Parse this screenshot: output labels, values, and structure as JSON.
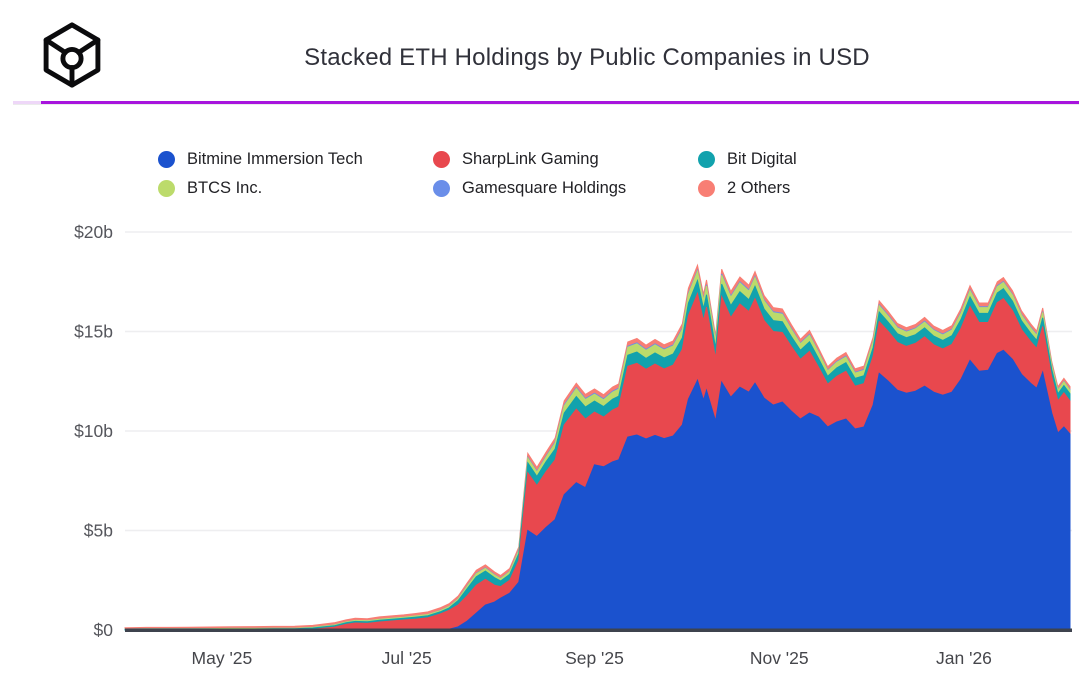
{
  "header": {
    "logo_icon": "cube-wireframe-logo"
  },
  "accent": {
    "divider_color": "#a714dd",
    "divider_light_color": "#eed7f8",
    "axis_line_color": "#3e434e",
    "gridline_color": "#eeeef0"
  },
  "chart_data": {
    "type": "area",
    "stacked": true,
    "title": "Stacked ETH Holdings by Public Companies in USD",
    "unit": "USD billions",
    "grid": true,
    "legend_position": "top",
    "y_max": 20,
    "x_domain": [
      "2025-03-30",
      "2026-02-05"
    ],
    "y_ticks": [
      {
        "value": 0,
        "label": "$0"
      },
      {
        "value": 5,
        "label": "$5b"
      },
      {
        "value": 10,
        "label": "$10b"
      },
      {
        "value": 15,
        "label": "$15b"
      },
      {
        "value": 20,
        "label": "$20b"
      }
    ],
    "x_ticks": [
      {
        "date": "2025-05-01",
        "label": "May '25"
      },
      {
        "date": "2025-07-01",
        "label": "Jul '25"
      },
      {
        "date": "2025-09-01",
        "label": "Sep '25"
      },
      {
        "date": "2025-11-01",
        "label": "Nov '25"
      },
      {
        "date": "2026-01-01",
        "label": "Jan '26"
      }
    ],
    "x": [
      "2025-03-30",
      "2025-04-06",
      "2025-04-13",
      "2025-04-20",
      "2025-04-27",
      "2025-05-04",
      "2025-05-11",
      "2025-05-18",
      "2025-05-25",
      "2025-05-31",
      "2025-06-03",
      "2025-06-07",
      "2025-06-11",
      "2025-06-14",
      "2025-06-18",
      "2025-06-22",
      "2025-06-26",
      "2025-06-30",
      "2025-07-04",
      "2025-07-08",
      "2025-07-12",
      "2025-07-15",
      "2025-07-18",
      "2025-07-21",
      "2025-07-24",
      "2025-07-27",
      "2025-07-30",
      "2025-08-01",
      "2025-08-04",
      "2025-08-07",
      "2025-08-10",
      "2025-08-13",
      "2025-08-16",
      "2025-08-19",
      "2025-08-22",
      "2025-08-26",
      "2025-08-29",
      "2025-09-01",
      "2025-09-04",
      "2025-09-07",
      "2025-09-09",
      "2025-09-12",
      "2025-09-15",
      "2025-09-18",
      "2025-09-21",
      "2025-09-24",
      "2025-09-27",
      "2025-09-30",
      "2025-10-02",
      "2025-10-05",
      "2025-10-07",
      "2025-10-08",
      "2025-10-11",
      "2025-10-13",
      "2025-10-16",
      "2025-10-19",
      "2025-10-22",
      "2025-10-24",
      "2025-10-27",
      "2025-10-30",
      "2025-11-02",
      "2025-11-05",
      "2025-11-08",
      "2025-11-11",
      "2025-11-14",
      "2025-11-17",
      "2025-11-20",
      "2025-11-23",
      "2025-11-26",
      "2025-11-29",
      "2025-12-02",
      "2025-12-04",
      "2025-12-07",
      "2025-12-10",
      "2025-12-13",
      "2025-12-16",
      "2025-12-19",
      "2025-12-22",
      "2025-12-25",
      "2025-12-28",
      "2025-12-31",
      "2026-01-03",
      "2026-01-06",
      "2026-01-09",
      "2026-01-12",
      "2026-01-14",
      "2026-01-17",
      "2026-01-20",
      "2026-01-23",
      "2026-01-25",
      "2026-01-27",
      "2026-01-30",
      "2026-02-01",
      "2026-02-03",
      "2026-02-05"
    ],
    "series": [
      {
        "name": "Bitmine Immersion Tech",
        "color": "#1b52ce",
        "values": [
          0,
          0,
          0,
          0,
          0,
          0,
          0,
          0,
          0,
          0,
          0,
          0,
          0,
          0,
          0,
          0,
          0,
          0,
          0,
          0,
          0,
          0.04,
          0.16,
          0.45,
          0.85,
          1.25,
          1.4,
          1.6,
          1.85,
          2.4,
          5.0,
          4.7,
          5.15,
          5.55,
          6.8,
          7.4,
          7.15,
          8.3,
          8.2,
          8.45,
          8.55,
          9.7,
          9.8,
          9.6,
          9.78,
          9.62,
          9.75,
          10.3,
          11.6,
          12.55,
          11.55,
          12.05,
          10.5,
          12.45,
          11.7,
          12.2,
          11.95,
          12.4,
          11.65,
          11.3,
          11.45,
          11.0,
          10.6,
          10.9,
          10.7,
          10.2,
          10.45,
          10.6,
          10.1,
          10.2,
          11.3,
          12.9,
          12.5,
          12.05,
          11.9,
          12.0,
          12.25,
          11.95,
          11.8,
          11.95,
          12.6,
          13.55,
          13.0,
          13.05,
          13.9,
          14.05,
          13.6,
          12.85,
          12.4,
          12.15,
          12.95,
          10.9,
          9.9,
          10.2,
          9.85
        ]
      },
      {
        "name": "SharpLink Gaming",
        "color": "#e8484e",
        "values": [
          0,
          0,
          0,
          0,
          0,
          0,
          0,
          0,
          0,
          0.04,
          0.08,
          0.14,
          0.28,
          0.35,
          0.33,
          0.4,
          0.45,
          0.5,
          0.55,
          0.62,
          0.8,
          0.95,
          1.1,
          1.28,
          1.4,
          1.3,
          0.85,
          0.58,
          0.65,
          1.1,
          2.9,
          2.55,
          2.8,
          3.0,
          3.5,
          3.7,
          3.45,
          2.65,
          2.5,
          2.6,
          2.65,
          3.55,
          3.6,
          3.5,
          3.58,
          3.5,
          3.56,
          3.8,
          4.2,
          4.36,
          4.0,
          4.18,
          3.15,
          4.3,
          4.0,
          4.18,
          4.05,
          4.25,
          3.9,
          3.7,
          3.5,
          3.25,
          3.0,
          3.1,
          2.5,
          2.15,
          2.3,
          2.4,
          2.15,
          2.18,
          2.45,
          2.6,
          2.5,
          2.4,
          2.35,
          2.4,
          2.48,
          2.38,
          2.32,
          2.4,
          2.55,
          2.7,
          2.45,
          2.4,
          2.55,
          2.6,
          2.45,
          2.25,
          2.1,
          2.0,
          2.3,
          1.8,
          1.62,
          1.72,
          1.66
        ]
      },
      {
        "name": "Bit Digital",
        "color": "#12a2ad",
        "values": [
          0.03,
          0.04,
          0.04,
          0.04,
          0.05,
          0.05,
          0.05,
          0.06,
          0.06,
          0.06,
          0.07,
          0.07,
          0.08,
          0.08,
          0.08,
          0.09,
          0.09,
          0.09,
          0.1,
          0.1,
          0.11,
          0.12,
          0.22,
          0.36,
          0.43,
          0.41,
          0.38,
          0.28,
          0.3,
          0.34,
          0.5,
          0.47,
          0.5,
          0.54,
          0.6,
          0.63,
          0.6,
          0.55,
          0.53,
          0.55,
          0.55,
          0.56,
          0.57,
          0.55,
          0.56,
          0.55,
          0.56,
          0.58,
          0.62,
          0.65,
          0.6,
          0.62,
          0.52,
          0.63,
          0.6,
          0.62,
          0.6,
          0.62,
          0.58,
          0.55,
          0.54,
          0.5,
          0.46,
          0.48,
          0.44,
          0.4,
          0.42,
          0.43,
          0.4,
          0.4,
          0.44,
          0.48,
          0.46,
          0.44,
          0.44,
          0.44,
          0.45,
          0.44,
          0.43,
          0.44,
          0.46,
          0.49,
          0.46,
          0.46,
          0.49,
          0.5,
          0.47,
          0.44,
          0.42,
          0.41,
          0.44,
          0.38,
          0.35,
          0.36,
          0.36
        ]
      },
      {
        "name": "BTCS Inc.",
        "color": "#bcdb6b",
        "values": [
          0.02,
          0.02,
          0.02,
          0.02,
          0.02,
          0.03,
          0.03,
          0.03,
          0.03,
          0.03,
          0.04,
          0.04,
          0.04,
          0.05,
          0.05,
          0.05,
          0.05,
          0.05,
          0.06,
          0.06,
          0.06,
          0.07,
          0.08,
          0.12,
          0.15,
          0.14,
          0.13,
          0.12,
          0.13,
          0.15,
          0.24,
          0.22,
          0.24,
          0.3,
          0.36,
          0.4,
          0.38,
          0.35,
          0.34,
          0.35,
          0.35,
          0.4,
          0.41,
          0.4,
          0.41,
          0.4,
          0.4,
          0.42,
          0.45,
          0.46,
          0.42,
          0.44,
          0.36,
          0.45,
          0.42,
          0.44,
          0.43,
          0.44,
          0.41,
          0.39,
          0.38,
          0.35,
          0.32,
          0.33,
          0.3,
          0.27,
          0.28,
          0.29,
          0.26,
          0.27,
          0.29,
          0.31,
          0.3,
          0.29,
          0.28,
          0.29,
          0.29,
          0.28,
          0.28,
          0.28,
          0.3,
          0.31,
          0.29,
          0.29,
          0.31,
          0.31,
          0.3,
          0.28,
          0.26,
          0.25,
          0.27,
          0.21,
          0.18,
          0.19,
          0.18
        ]
      },
      {
        "name": "Gamesquare Holdings",
        "color": "#6a8ee9",
        "values": [
          0,
          0,
          0,
          0,
          0,
          0,
          0,
          0,
          0,
          0,
          0,
          0,
          0,
          0,
          0,
          0,
          0,
          0,
          0,
          0,
          0.01,
          0.01,
          0.01,
          0.02,
          0.02,
          0.02,
          0.02,
          0.02,
          0.02,
          0.03,
          0.04,
          0.04,
          0.04,
          0.05,
          0.05,
          0.05,
          0.05,
          0.05,
          0.05,
          0.05,
          0.05,
          0.05,
          0.05,
          0.05,
          0.05,
          0.05,
          0.05,
          0.06,
          0.06,
          0.06,
          0.06,
          0.06,
          0.05,
          0.06,
          0.06,
          0.06,
          0.06,
          0.06,
          0.05,
          0.05,
          0.05,
          0.05,
          0.04,
          0.05,
          0.04,
          0.04,
          0.04,
          0.04,
          0.04,
          0.04,
          0.04,
          0.05,
          0.05,
          0.04,
          0.04,
          0.04,
          0.05,
          0.04,
          0.04,
          0.04,
          0.05,
          0.05,
          0.04,
          0.04,
          0.05,
          0.05,
          0.04,
          0.04,
          0.04,
          0.04,
          0.04,
          0.03,
          0.03,
          0.03,
          0.03
        ]
      },
      {
        "name": "2 Others",
        "color": "#f87e74",
        "values": [
          0.06,
          0.07,
          0.07,
          0.08,
          0.08,
          0.08,
          0.09,
          0.09,
          0.1,
          0.1,
          0.1,
          0.11,
          0.11,
          0.11,
          0.11,
          0.12,
          0.12,
          0.12,
          0.12,
          0.13,
          0.13,
          0.13,
          0.14,
          0.14,
          0.15,
          0.15,
          0.14,
          0.14,
          0.14,
          0.15,
          0.2,
          0.19,
          0.2,
          0.2,
          0.21,
          0.22,
          0.21,
          0.21,
          0.2,
          0.21,
          0.21,
          0.21,
          0.22,
          0.21,
          0.22,
          0.21,
          0.21,
          0.22,
          0.24,
          0.25,
          0.23,
          0.24,
          0.2,
          0.24,
          0.23,
          0.24,
          0.23,
          0.24,
          0.22,
          0.21,
          0.21,
          0.2,
          0.19,
          0.19,
          0.18,
          0.17,
          0.17,
          0.18,
          0.17,
          0.17,
          0.19,
          0.2,
          0.19,
          0.18,
          0.18,
          0.18,
          0.19,
          0.18,
          0.18,
          0.18,
          0.19,
          0.2,
          0.19,
          0.19,
          0.2,
          0.2,
          0.19,
          0.18,
          0.17,
          0.17,
          0.18,
          0.15,
          0.14,
          0.15,
          0.15
        ]
      }
    ]
  }
}
